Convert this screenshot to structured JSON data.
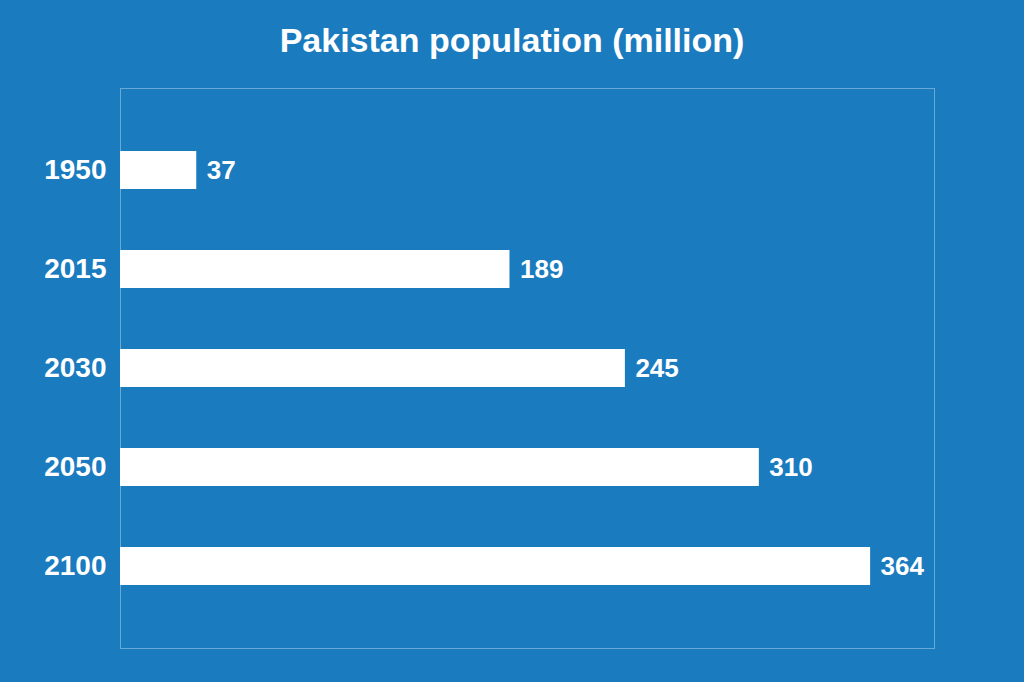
{
  "chart_data": {
    "type": "bar",
    "orientation": "horizontal",
    "title": "Pakistan population (million)",
    "categories": [
      "1950",
      "2015",
      "2030",
      "2050",
      "2100"
    ],
    "values": [
      37,
      189,
      245,
      310,
      364
    ],
    "color": "#ffffff",
    "xlim": [
      0,
      395
    ],
    "data_labels": true,
    "tick_labels": "y",
    "grid": false
  }
}
